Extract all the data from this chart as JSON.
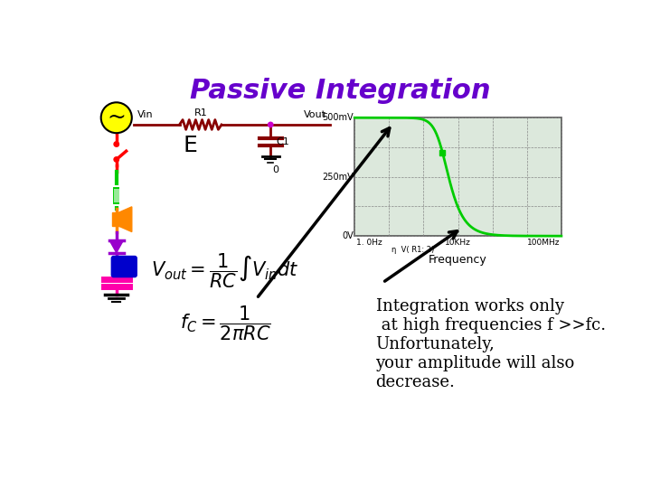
{
  "title": "Passive Integration",
  "title_color": "#6600cc",
  "title_fontsize": 22,
  "bg_color": "#ffffff",
  "text_fontsize": 13,
  "circuit_label_E": "E",
  "circuit_label_Vin": "Vin",
  "circuit_label_Vout": "Vout",
  "circuit_label_R1": "R1",
  "circuit_label_C1": "C1",
  "circuit_label_0": "0",
  "plot_xlabel": "Frequency",
  "plot_curve_color": "#00cc00",
  "arrow_color": "#000000",
  "wire_color": "#880000",
  "connector_color": "#cc00cc",
  "src_circle_color": "#ffff00",
  "green_color": "#00cc00",
  "orange_color": "#ff8800",
  "purple_color": "#9900cc",
  "blue_color": "#0000cc",
  "magenta_color": "#ff00aa"
}
